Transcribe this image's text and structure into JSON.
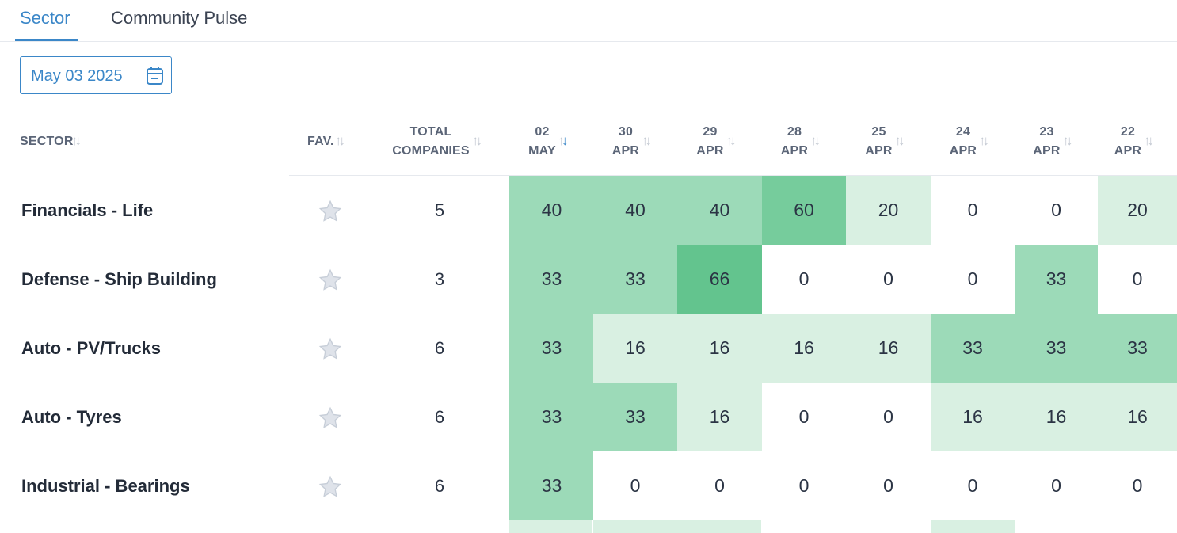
{
  "tabs": [
    {
      "label": "Sector",
      "active": true
    },
    {
      "label": "Community Pulse",
      "active": false
    }
  ],
  "date_picker": {
    "value": "May 03 2025",
    "icon": "calendar-icon"
  },
  "columns": {
    "sector": "SECTOR",
    "fav": "FAV.",
    "total_line1": "TOTAL",
    "total_line2": "COMPANIES",
    "dates": [
      {
        "day": "02",
        "month": "MAY",
        "sorted": "desc"
      },
      {
        "day": "30",
        "month": "APR"
      },
      {
        "day": "29",
        "month": "APR"
      },
      {
        "day": "28",
        "month": "APR"
      },
      {
        "day": "25",
        "month": "APR"
      },
      {
        "day": "24",
        "month": "APR"
      },
      {
        "day": "23",
        "month": "APR"
      },
      {
        "day": "22",
        "month": "APR"
      }
    ]
  },
  "sort_icon": "sort-arrows-icon",
  "favorite_icon": "star-icon",
  "rows": [
    {
      "sector": "Financials - Life",
      "total": "5",
      "values": [
        "40",
        "40",
        "40",
        "60",
        "20",
        "0",
        "0",
        "20"
      ]
    },
    {
      "sector": "Defense - Ship Building",
      "total": "3",
      "values": [
        "33",
        "33",
        "66",
        "0",
        "0",
        "0",
        "33",
        "0"
      ]
    },
    {
      "sector": "Auto - PV/Trucks",
      "total": "6",
      "values": [
        "33",
        "16",
        "16",
        "16",
        "16",
        "33",
        "33",
        "33"
      ]
    },
    {
      "sector": "Auto - Tyres",
      "total": "6",
      "values": [
        "33",
        "33",
        "16",
        "0",
        "0",
        "16",
        "16",
        "16"
      ]
    },
    {
      "sector": "Industrial - Bearings",
      "total": "6",
      "values": [
        "33",
        "0",
        "0",
        "0",
        "0",
        "0",
        "0",
        "0"
      ]
    }
  ],
  "heat_colors": {
    "zero": "#ffffff",
    "low": "#d9f0e2",
    "mid": "#9cdab8",
    "high": "#76cc9c",
    "top": "#63c48e"
  }
}
